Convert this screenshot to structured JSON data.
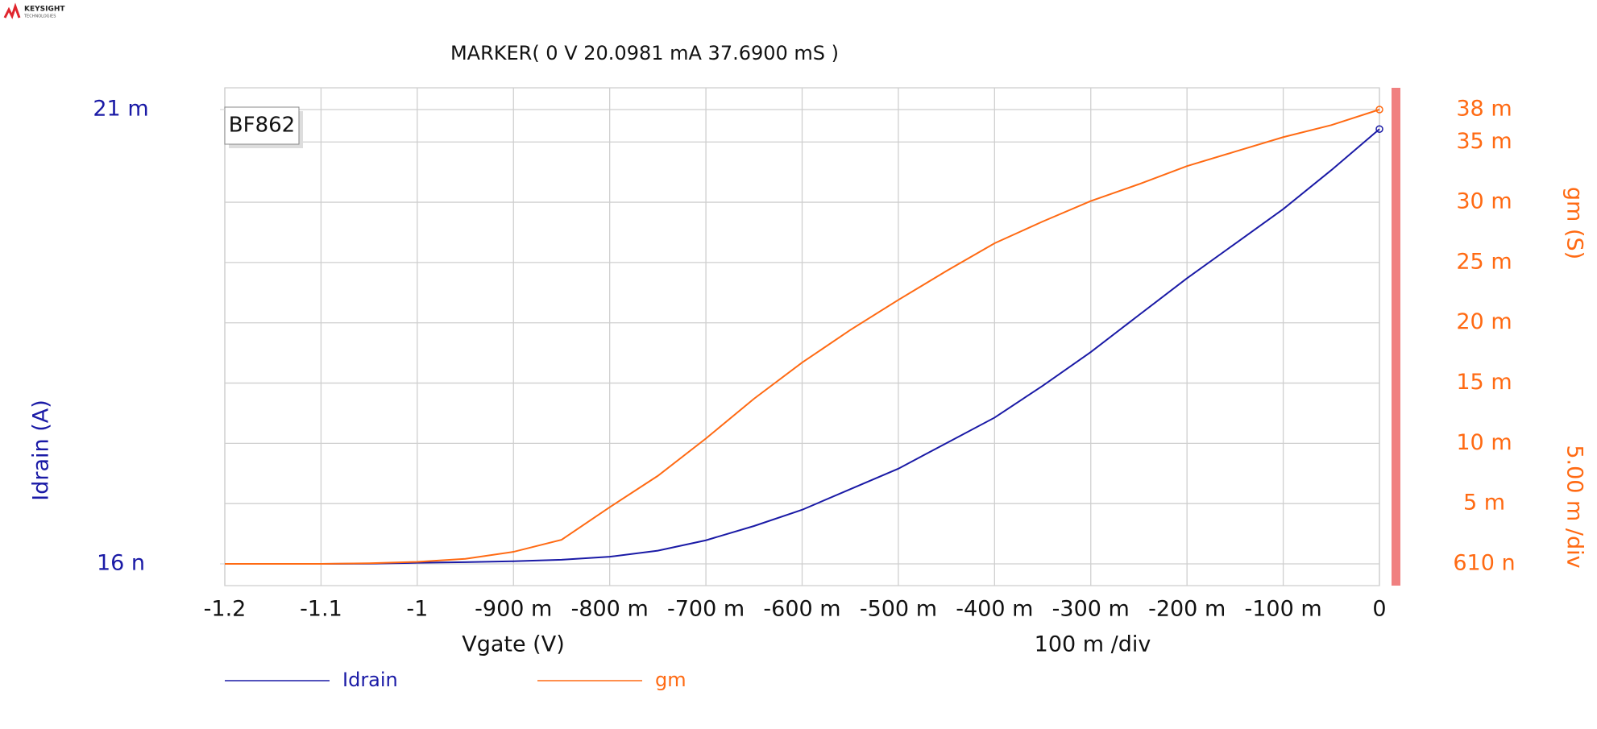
{
  "logo": {
    "name": "KEYSIGHT",
    "sub": "TECHNOLOGIES"
  },
  "chart_data": {
    "type": "line",
    "title": "MARKER(  0 V   20.0981 mA  37.6900 mS )",
    "device_label": "BF862",
    "x_label": "Vgate (V)",
    "x_div_label": "100 m /div",
    "y_label": "Idrain (A)",
    "y2_label": "gm (S)",
    "y2_div_label": "5.00 m /div",
    "x": [
      -1.2,
      -1.15,
      -1.1,
      -1.05,
      -1.0,
      -0.95,
      -0.9,
      -0.85,
      -0.8,
      -0.75,
      -0.7,
      -0.65,
      -0.6,
      -0.55,
      -0.5,
      -0.45,
      -0.4,
      -0.35,
      -0.3,
      -0.25,
      -0.2,
      -0.15,
      -0.1,
      -0.05,
      0
    ],
    "series": [
      {
        "name": "Idrain",
        "color": "#1a1aa6",
        "axis": "y",
        "values": [
          1.6e-08,
          1.6e-08,
          1.6e-08,
          1e-05,
          5e-05,
          8e-05,
          0.00012,
          0.00019,
          0.00033,
          0.00061,
          0.00109,
          0.00175,
          0.0025,
          0.00345,
          0.0044,
          0.00558,
          0.00676,
          0.00823,
          0.00979,
          0.0115,
          0.0132,
          0.0148,
          0.0164,
          0.0182,
          0.0200981
        ]
      },
      {
        "name": "gm",
        "color": "#ff6a13",
        "axis": "y2",
        "values": [
          6.1e-07,
          6.1e-07,
          6.1e-07,
          5e-05,
          0.00017,
          0.00042,
          0.001,
          0.002,
          0.0047,
          0.0073,
          0.0104,
          0.0137,
          0.0167,
          0.0194,
          0.0219,
          0.0243,
          0.0266,
          0.0284,
          0.0301,
          0.0315,
          0.033,
          0.0342,
          0.0354,
          0.0364,
          0.03769
        ]
      }
    ],
    "xlim": [
      -1.2,
      0
    ],
    "xticks": [
      -1.2,
      -1.1,
      -1,
      {
        "value": -0.9,
        "label": "-900 m"
      },
      {
        "value": -0.8,
        "label": "-800 m"
      },
      {
        "value": -0.7,
        "label": "-700 m"
      },
      {
        "value": -0.6,
        "label": "-600 m"
      },
      {
        "value": -0.5,
        "label": "-500 m"
      },
      {
        "value": -0.4,
        "label": "-400 m"
      },
      {
        "value": -0.3,
        "label": "-300 m"
      },
      {
        "value": -0.2,
        "label": "-200 m"
      },
      {
        "value": -0.1,
        "label": "-100 m"
      },
      0
    ],
    "ylim": [
      1.6e-08,
      0.021
    ],
    "yticks": [
      {
        "value": 1.6e-08,
        "label": "16 n"
      },
      {
        "value": 0.021,
        "label": "21 m"
      }
    ],
    "y2lim": [
      6.1e-07,
      0.03769
    ],
    "y2ticks": [
      {
        "value": 6.1e-07,
        "label": "610 n"
      },
      {
        "value": 0.005,
        "label": "5 m"
      },
      {
        "value": 0.01,
        "label": "10 m"
      },
      {
        "value": 0.015,
        "label": "15 m"
      },
      {
        "value": 0.02,
        "label": "20 m"
      },
      {
        "value": 0.025,
        "label": "25 m"
      },
      {
        "value": 0.03,
        "label": "30 m"
      },
      {
        "value": 0.035,
        "label": "35 m"
      },
      {
        "value": 0.03769,
        "label": "38 m"
      }
    ],
    "grid": true
  }
}
